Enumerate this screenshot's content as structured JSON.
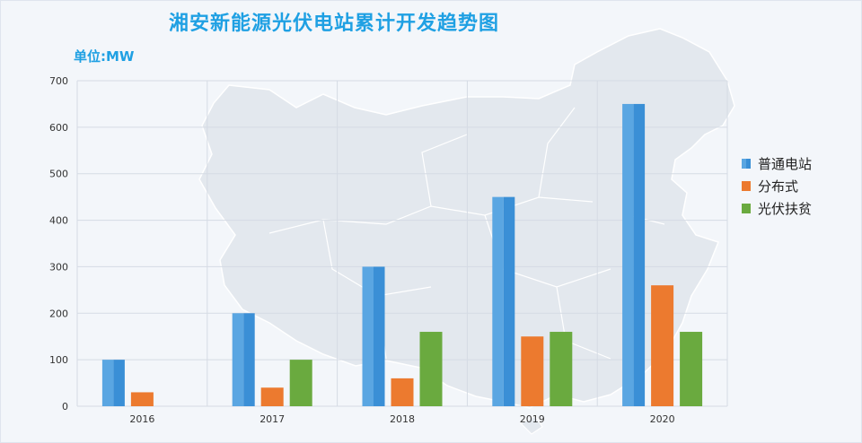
{
  "title": "湘安新能源光伏电站累计开发趋势图",
  "unit_label": "单位:MW",
  "colors": {
    "title": "#1fa0e3",
    "series": [
      "#3a8fd6",
      "#ec7a2f",
      "#6aaa3f"
    ],
    "series_highlight": [
      "#5aa6e2",
      "#ec7a2f",
      "#6aaa3f"
    ],
    "grid": "#d5dbe4",
    "map": "#e2e7ee"
  },
  "chart_data": {
    "type": "bar",
    "categories": [
      "2016",
      "2017",
      "2018",
      "2019",
      "2020"
    ],
    "series": [
      {
        "name": "普通电站",
        "values": [
          100,
          200,
          300,
          450,
          650
        ]
      },
      {
        "name": "分布式",
        "values": [
          30,
          40,
          60,
          150,
          260
        ]
      },
      {
        "name": "光伏扶贫",
        "values": [
          0,
          100,
          160,
          160,
          160
        ]
      }
    ],
    "ylim": [
      0,
      700
    ],
    "yticks": [
      0,
      100,
      200,
      300,
      400,
      500,
      600,
      700
    ],
    "grid": true,
    "legend_position": "right",
    "background_image": "china-map-silhouette"
  }
}
